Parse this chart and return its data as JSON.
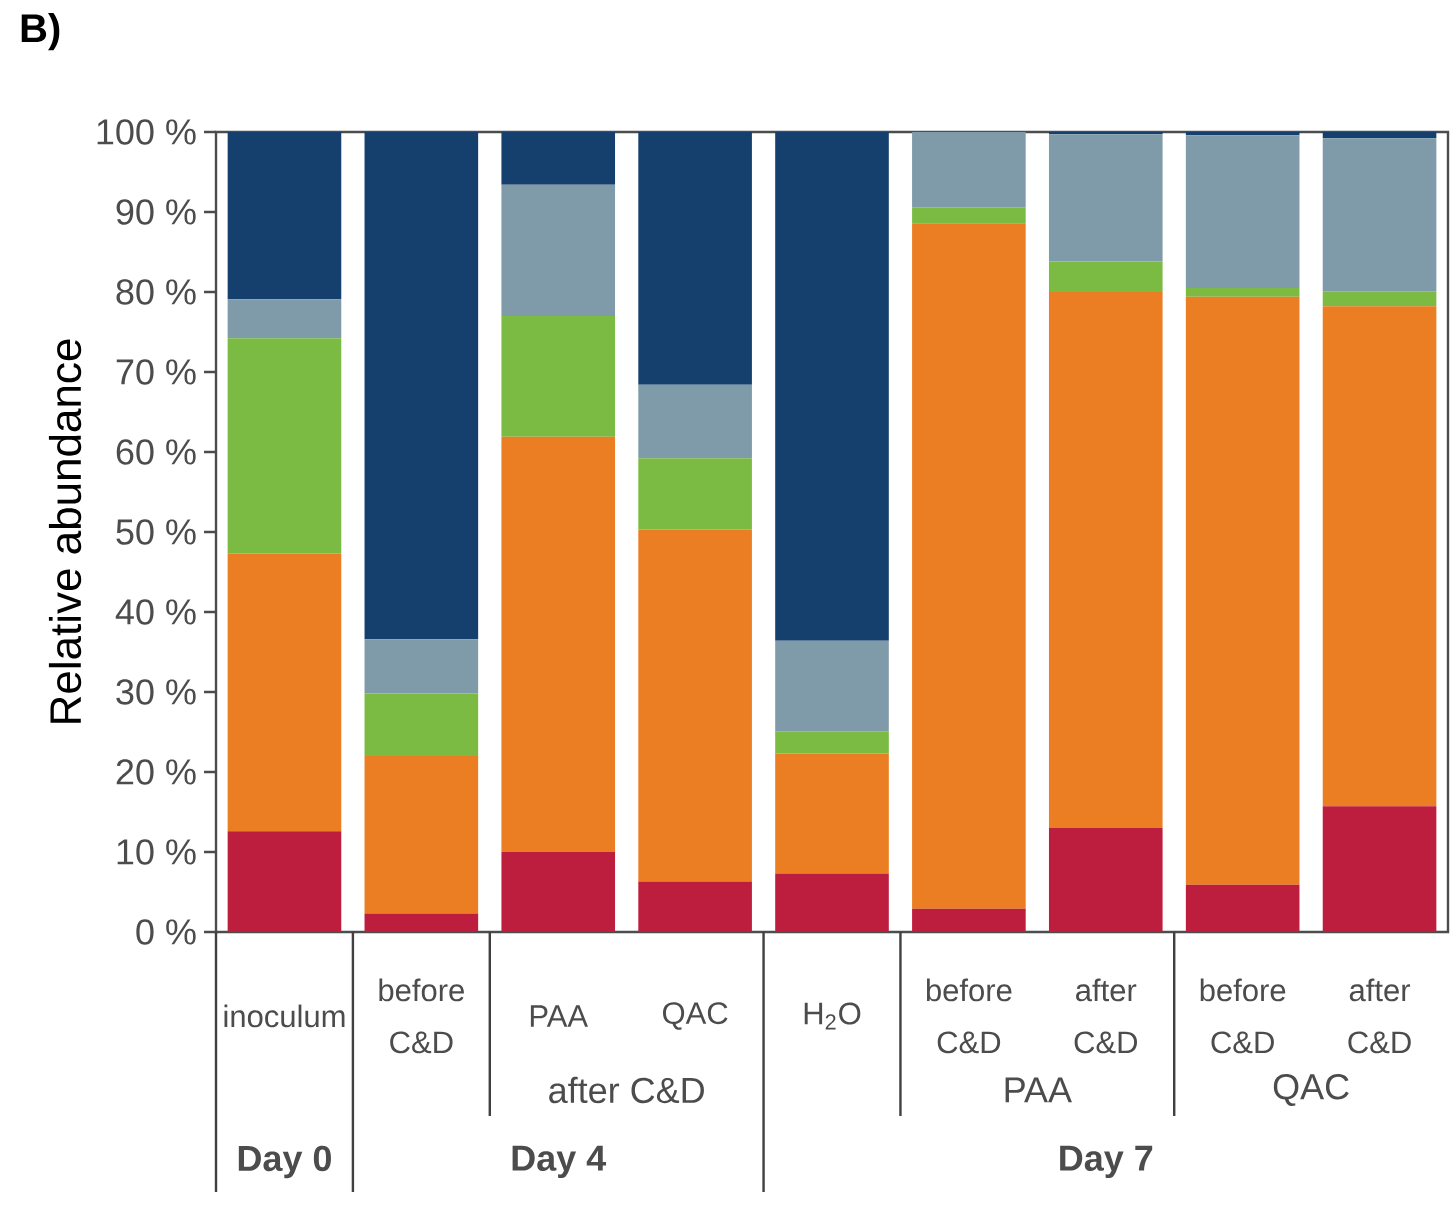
{
  "chart_data": {
    "type": "bar",
    "stacked": true,
    "title": "B)",
    "ylabel": "Relative abundance",
    "categories": [
      "inoculum",
      "before C&D",
      "PAA",
      "QAC",
      "H$_{2}$O",
      "before C&D",
      "after C&D",
      "before C&D",
      "after C&D"
    ],
    "series": [
      {
        "color": "#be1e3d",
        "values": [
          12.6,
          2.3,
          10.0,
          6.3,
          7.3,
          2.9,
          13.0,
          5.9,
          15.7
        ]
      },
      {
        "color": "#eb7d23",
        "values": [
          34.7,
          19.7,
          51.9,
          44.0,
          15.0,
          85.7,
          67.0,
          73.5,
          62.5
        ]
      },
      {
        "color": "#7bbb43",
        "values": [
          26.9,
          7.8,
          15.1,
          8.9,
          2.8,
          2.0,
          3.8,
          1.1,
          1.9
        ]
      },
      {
        "color": "#7f9aa8",
        "values": [
          4.9,
          6.8,
          16.4,
          9.2,
          11.3,
          9.4,
          15.9,
          19.1,
          19.1
        ]
      },
      {
        "color": "#15406e",
        "values": [
          20.9,
          63.4,
          6.6,
          31.6,
          63.6,
          0,
          0.3,
          0.4,
          0.8
        ]
      }
    ],
    "ylim": [
      0,
      100
    ],
    "yticks": [
      {
        "value": 0,
        "label": "0 %"
      },
      {
        "value": 10,
        "label": "10 %"
      },
      {
        "value": 20,
        "label": "20 %"
      },
      {
        "value": 30,
        "label": "30 %"
      },
      {
        "value": 40,
        "label": "40 %"
      },
      {
        "value": 50,
        "label": "50 %"
      },
      {
        "value": 60,
        "label": "60 %"
      },
      {
        "value": 70,
        "label": "70 %"
      },
      {
        "value": 80,
        "label": "80 %"
      },
      {
        "value": 90,
        "label": "90 %"
      },
      {
        "value": 100,
        "label": "100 %"
      }
    ],
    "annotations": [
      "after C&D",
      "PAA",
      "QAC",
      "Day 0",
      "Day 4",
      "Day 7"
    ]
  }
}
